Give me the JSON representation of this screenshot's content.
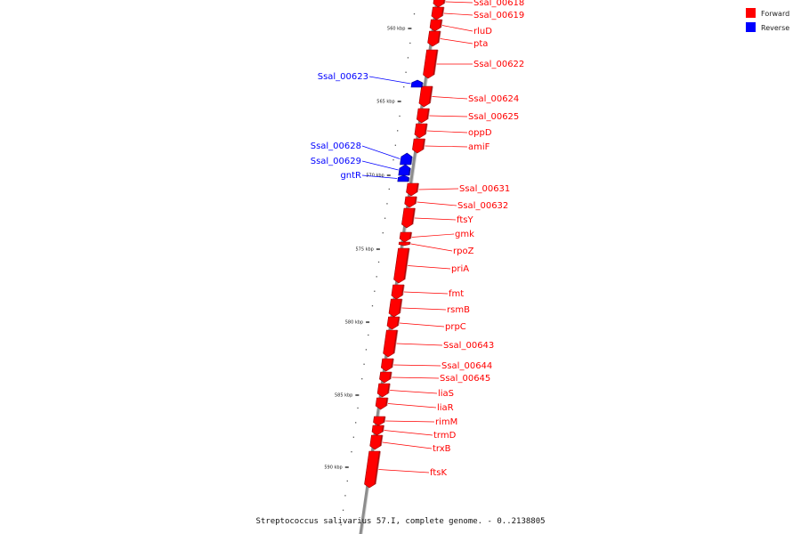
{
  "colors": {
    "forward": "#ff0000",
    "reverse": "#0000ff",
    "forward_dark": "#9c0000",
    "reverse_dark": "#00008c",
    "backbone": "#8c8c8c"
  },
  "legend": {
    "forward": "Forward",
    "reverse": "Reverse"
  },
  "caption": "Streptococcus salivarius 57.I, complete genome. - 0..2138805",
  "kbp_ticks": [
    "560 kbp",
    "565 kbp",
    "570 kbp",
    "575 kbp",
    "580 kbp",
    "585 kbp",
    "590 kbp"
  ],
  "forward_genes": [
    "Ssal_00618",
    "Ssal_00619",
    "rluD",
    "pta",
    "Ssal_00622",
    "Ssal_00624",
    "Ssal_00625",
    "oppD",
    "amiF",
    "Ssal_00631",
    "Ssal_00632",
    "ftsY",
    "gmk",
    "rpoZ",
    "priA",
    "fmt",
    "rsmB",
    "prpC",
    "Ssal_00643",
    "Ssal_00644",
    "Ssal_00645",
    "liaS",
    "liaR",
    "rimM",
    "trmD",
    "trxB",
    "ftsK"
  ],
  "reverse_genes": [
    "Ssal_00623",
    "Ssal_00628",
    "Ssal_00629",
    "gntR"
  ]
}
